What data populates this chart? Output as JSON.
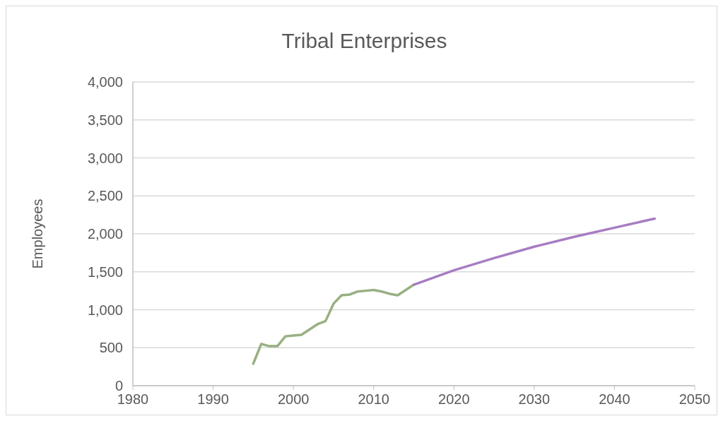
{
  "chart_data": {
    "type": "line",
    "title": "Tribal Enterprises",
    "ylabel": "Employees",
    "series": [
      {
        "color": "#98b082",
        "x": [
          1995,
          1996,
          1997,
          1998,
          1999,
          2000,
          2001,
          2002,
          2003,
          2004,
          2005,
          2006,
          2007,
          2008,
          2009,
          2010,
          2011,
          2012,
          2013,
          2014,
          2015
        ],
        "values": [
          290,
          550,
          520,
          520,
          650,
          660,
          670,
          740,
          810,
          850,
          1080,
          1190,
          1200,
          1240,
          1250,
          1260,
          1240,
          1210,
          1190,
          1260,
          1330
        ]
      },
      {
        "color": "#a77dc2",
        "x": [
          2015,
          2020,
          2025,
          2030,
          2035,
          2040,
          2045
        ],
        "values": [
          1330,
          1520,
          1680,
          1830,
          1960,
          2080,
          2200
        ]
      }
    ],
    "xlim": [
      1980,
      2050
    ],
    "xticks": [
      1980,
      1990,
      2000,
      2010,
      2020,
      2030,
      2040,
      2050
    ],
    "ylim": [
      0,
      4000
    ],
    "yticks": [
      0,
      {
        "value": 500,
        "label": "500"
      },
      {
        "value": 1000,
        "label": "1,000"
      },
      {
        "value": 1500,
        "label": "1,500"
      },
      {
        "value": 2000,
        "label": "2,000"
      },
      {
        "value": 2500,
        "label": "2,500"
      },
      {
        "value": 3000,
        "label": "3,000"
      },
      {
        "value": 3500,
        "label": "3,500"
      },
      {
        "value": 4000,
        "label": "4,000"
      }
    ],
    "grid": "y"
  }
}
